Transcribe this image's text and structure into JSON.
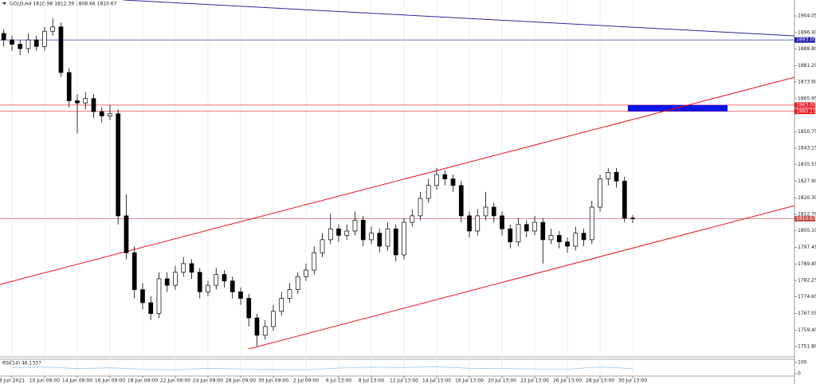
{
  "chart_data": {
    "type": "candlestick",
    "title": "GOLD,H4 1810.98 1812.39 1808.66 1810.67",
    "x": [
      -1,
      0,
      1,
      2,
      3,
      4,
      5,
      6,
      7,
      8,
      9,
      10,
      11,
      12,
      13,
      14,
      15,
      16,
      17,
      18,
      19,
      20,
      21,
      22,
      23,
      24,
      25,
      26,
      27,
      28,
      29,
      30,
      31,
      32,
      33,
      34,
      35,
      36,
      37,
      38,
      39,
      40,
      41,
      42,
      43,
      44,
      45,
      46,
      47,
      48,
      49,
      50,
      51,
      52,
      53,
      54,
      55,
      56,
      57,
      58,
      59,
      60,
      61,
      62,
      63,
      64,
      65,
      66,
      67,
      68,
      69,
      70,
      71,
      72,
      73,
      74,
      75,
      76
    ],
    "ohlc": [
      [
        1896,
        1898,
        1890,
        1893
      ],
      [
        1893,
        1895,
        1888,
        1891
      ],
      [
        1891,
        1893,
        1886,
        1889
      ],
      [
        1889,
        1896,
        1887,
        1893
      ],
      [
        1893,
        1895,
        1888,
        1890
      ],
      [
        1890,
        1899,
        1888,
        1897
      ],
      [
        1897,
        1903,
        1895,
        1899
      ],
      [
        1899,
        1901,
        1876,
        1878
      ],
      [
        1878,
        1880,
        1862,
        1865
      ],
      [
        1865,
        1868,
        1850,
        1864
      ],
      [
        1864,
        1869,
        1861,
        1866
      ],
      [
        1866,
        1868,
        1857,
        1860
      ],
      [
        1860,
        1862,
        1855,
        1858
      ],
      [
        1858,
        1863,
        1856,
        1859
      ],
      [
        1859,
        1861,
        1808,
        1812
      ],
      [
        1812,
        1822,
        1792,
        1795
      ],
      [
        1795,
        1798,
        1774,
        1778
      ],
      [
        1778,
        1781,
        1769,
        1772
      ],
      [
        1772,
        1775,
        1764,
        1767
      ],
      [
        1767,
        1786,
        1765,
        1783
      ],
      [
        1783,
        1786,
        1777,
        1780
      ],
      [
        1780,
        1789,
        1778,
        1786
      ],
      [
        1786,
        1793,
        1784,
        1790
      ],
      [
        1790,
        1792,
        1783,
        1786
      ],
      [
        1786,
        1788,
        1774,
        1777
      ],
      [
        1777,
        1782,
        1775,
        1780
      ],
      [
        1780,
        1788,
        1778,
        1785
      ],
      [
        1785,
        1787,
        1779,
        1782
      ],
      [
        1782,
        1784,
        1774,
        1777
      ],
      [
        1777,
        1779,
        1771,
        1774
      ],
      [
        1774,
        1776,
        1761,
        1765
      ],
      [
        1765,
        1767,
        1752,
        1757
      ],
      [
        1757,
        1764,
        1755,
        1761
      ],
      [
        1761,
        1771,
        1759,
        1768
      ],
      [
        1768,
        1777,
        1766,
        1774
      ],
      [
        1774,
        1781,
        1772,
        1778
      ],
      [
        1778,
        1786,
        1776,
        1784
      ],
      [
        1784,
        1790,
        1782,
        1787
      ],
      [
        1787,
        1798,
        1785,
        1795
      ],
      [
        1795,
        1804,
        1793,
        1801
      ],
      [
        1801,
        1813,
        1799,
        1806
      ],
      [
        1806,
        1808,
        1800,
        1803
      ],
      [
        1803,
        1808,
        1801,
        1805
      ],
      [
        1805,
        1814,
        1803,
        1810
      ],
      [
        1810,
        1812,
        1798,
        1801
      ],
      [
        1801,
        1807,
        1799,
        1804
      ],
      [
        1804,
        1806,
        1795,
        1798
      ],
      [
        1798,
        1809,
        1796,
        1806
      ],
      [
        1806,
        1808,
        1791,
        1794
      ],
      [
        1794,
        1811,
        1792,
        1809
      ],
      [
        1809,
        1815,
        1807,
        1812
      ],
      [
        1812,
        1823,
        1810,
        1820
      ],
      [
        1820,
        1829,
        1818,
        1826
      ],
      [
        1826,
        1834,
        1824,
        1831
      ],
      [
        1831,
        1833,
        1826,
        1829
      ],
      [
        1829,
        1831,
        1823,
        1826
      ],
      [
        1826,
        1828,
        1809,
        1812
      ],
      [
        1812,
        1814,
        1802,
        1805
      ],
      [
        1805,
        1815,
        1803,
        1812
      ],
      [
        1812,
        1823,
        1810,
        1816
      ],
      [
        1816,
        1818,
        1809,
        1812
      ],
      [
        1812,
        1814,
        1803,
        1806
      ],
      [
        1806,
        1808,
        1797,
        1800
      ],
      [
        1800,
        1811,
        1798,
        1808
      ],
      [
        1808,
        1810,
        1802,
        1805
      ],
      [
        1805,
        1812,
        1803,
        1809
      ],
      [
        1809,
        1811,
        1790,
        1801
      ],
      [
        1801,
        1806,
        1799,
        1803
      ],
      [
        1803,
        1805,
        1797,
        1800
      ],
      [
        1800,
        1802,
        1795,
        1798
      ],
      [
        1798,
        1807,
        1796,
        1804
      ],
      [
        1804,
        1806,
        1798,
        1801
      ],
      [
        1801,
        1819,
        1799,
        1816
      ],
      [
        1816,
        1831,
        1814,
        1829
      ],
      [
        1829,
        1834,
        1826,
        1832
      ],
      [
        1832,
        1834,
        1825,
        1828
      ],
      [
        1828,
        1830,
        1809,
        1810.98
      ],
      [
        1810.98,
        1812.39,
        1808.66,
        1810.67
      ]
    ],
    "xlim": [
      -1.46,
      95.8
    ],
    "ylim": [
      1747.03,
      1911.39
    ],
    "yticks": [
      {
        "value": 1904.05,
        "label": "1904.05"
      },
      {
        "value": 1896.4,
        "label": "1896.40"
      },
      {
        "value": 1888.8,
        "label": "1888.80"
      },
      {
        "value": 1881.2,
        "label": "1881.20"
      },
      {
        "value": 1873.6,
        "label": "1873.60"
      },
      {
        "value": 1865.95,
        "label": "1865.95"
      },
      {
        "value": 1850.75,
        "label": "1850.75"
      },
      {
        "value": 1843.15,
        "label": "1843.15"
      },
      {
        "value": 1835.55,
        "label": "1835.55"
      },
      {
        "value": 1827.9,
        "label": "1827.90"
      },
      {
        "value": 1820.3,
        "label": "1820.30"
      },
      {
        "value": 1812.7,
        "label": "1812.70"
      },
      {
        "value": 1805.1,
        "label": "1805.10"
      },
      {
        "value": 1797.45,
        "label": "1797.45"
      },
      {
        "value": 1789.85,
        "label": "1789.85"
      },
      {
        "value": 1782.25,
        "label": "1782.25"
      },
      {
        "value": 1774.65,
        "label": "1774.65"
      },
      {
        "value": 1767.05,
        "label": "1767.05"
      },
      {
        "value": 1759.4,
        "label": "1759.40"
      },
      {
        "value": 1751.8,
        "label": "1751.80"
      }
    ],
    "xticks": [
      {
        "value": 0,
        "label": "8 Jun 2021"
      },
      {
        "value": 4,
        "label": "10 Jun 09:00"
      },
      {
        "value": 8,
        "label": "14 Jun 09:00"
      },
      {
        "value": 12,
        "label": "16 Jun 09:00"
      },
      {
        "value": 16,
        "label": "18 Jun 09:00"
      },
      {
        "value": 20,
        "label": "22 Jun 09:00"
      },
      {
        "value": 24,
        "label": "24 Jun 09:00"
      },
      {
        "value": 28,
        "label": "28 Jun 09:00"
      },
      {
        "value": 32,
        "label": "30 Jun 09:00"
      },
      {
        "value": 36,
        "label": "2 Jul 09:00"
      },
      {
        "value": 40,
        "label": "6 Jul 13:00"
      },
      {
        "value": 44,
        "label": "8 Jul 13:00"
      },
      {
        "value": 48,
        "label": "12 Jul 13:00"
      },
      {
        "value": 52,
        "label": "14 Jul 13:00"
      },
      {
        "value": 56,
        "label": "16 Jul 13:00"
      },
      {
        "value": 60,
        "label": "20 Jul 13:00"
      },
      {
        "value": 64,
        "label": "22 Jul 13:00"
      },
      {
        "value": 68,
        "label": "26 Jul 13:00"
      },
      {
        "value": 72,
        "label": "28 Jul 13:00"
      },
      {
        "value": 76,
        "label": "30 Jul 13:00"
      }
    ],
    "grid": true,
    "levels": [
      {
        "value": 1893,
        "label": "1893.00",
        "color": "#1a1aa6"
      },
      {
        "value": 1863,
        "label": "1863.00",
        "color": "#e8141e"
      },
      {
        "value": 1860.11,
        "label": "1860.11",
        "color": "#e8141e"
      },
      {
        "value": 1810.67,
        "label": "1810.67",
        "color": "#c0504d"
      }
    ],
    "trendlines": [
      {
        "color": "#2a2a9a",
        "x": [
          13.66,
          95.8
        ],
        "y": [
          1911.39,
          1894.88
        ]
      },
      {
        "color": "#e8141e",
        "x": [
          -1.46,
          95.8
        ],
        "y": [
          1780.4,
          1875.8
        ]
      },
      {
        "color": "#e8141e",
        "x": [
          28.98,
          95.8
        ],
        "y": [
          1750.7,
          1816.7
        ]
      }
    ],
    "zone": {
      "color": "#0a14e6",
      "x": [
        75.4,
        87.6
      ],
      "y": [
        1863,
        1860.11
      ]
    },
    "rsi": {
      "label": "RSI(14) 46.1337",
      "ylim": [
        0,
        100
      ],
      "yticks": [
        100,
        0
      ],
      "color": "#9ec9e8",
      "x": [
        0,
        4,
        8,
        12,
        16,
        20,
        24,
        28,
        32,
        36,
        40,
        44,
        48,
        52,
        56,
        60,
        64,
        68,
        72,
        76
      ],
      "values": [
        55,
        60,
        45,
        52,
        40,
        35,
        48,
        42,
        38,
        35,
        50,
        58,
        55,
        62,
        48,
        45,
        42,
        40,
        60,
        46
      ]
    }
  }
}
